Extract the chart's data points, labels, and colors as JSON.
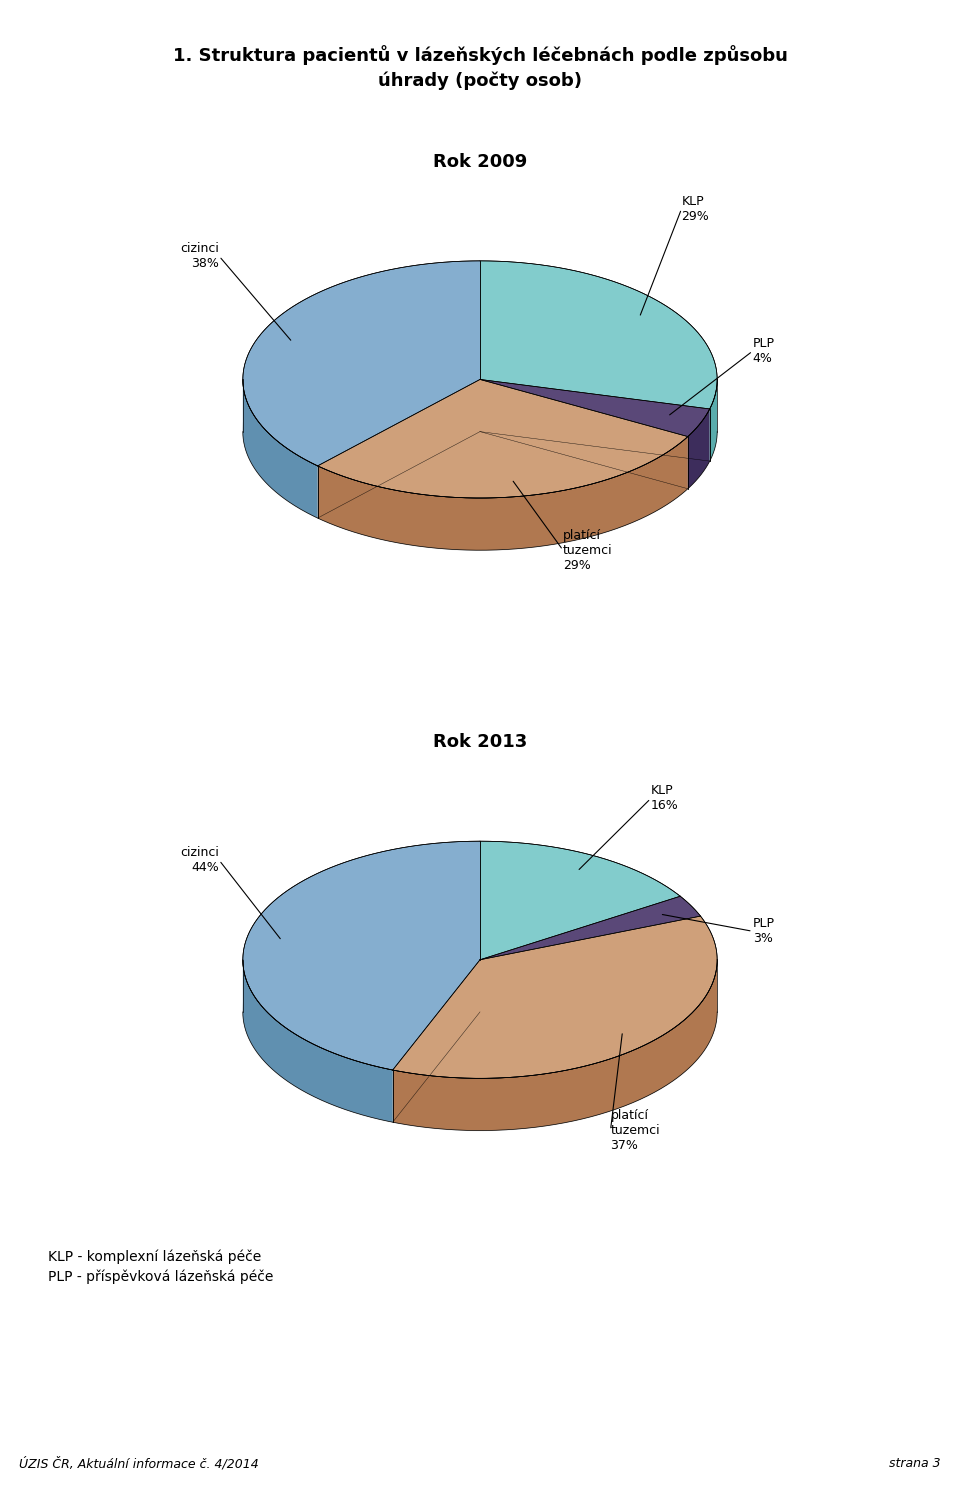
{
  "title": "1. Struktura pacientů v lázeňských léčebnách podle způsobu\núhrady (počty osob)",
  "chart1_title": "Rok 2009",
  "chart2_title": "Rok 2013",
  "chart1_slices": [
    29,
    4,
    29,
    38
  ],
  "chart2_slices": [
    16,
    3,
    37,
    44
  ],
  "slice_labels": [
    "KLP",
    "PLP",
    "platící\ntuzemci",
    "cizinci"
  ],
  "slice_colors_top": [
    "#82CCCC",
    "#5A4878",
    "#CFA07A",
    "#85AECF"
  ],
  "slice_colors_side": [
    "#5AACAC",
    "#3D2D5C",
    "#B07850",
    "#6090B0"
  ],
  "label_percents_1": [
    "29%",
    "4%",
    "29%",
    "38%"
  ],
  "label_percents_2": [
    "16%",
    "3%",
    "37%",
    "44%"
  ],
  "footer_left": "ÚZIS ČR, Aktuální informace č. 4/2014",
  "footer_right": "strana 3",
  "legend_line1": "KLP - komplexní lázeňská péče",
  "legend_line2": "PLP - příspěvková lázeňská péče",
  "bg_color": "#FFFFFF"
}
